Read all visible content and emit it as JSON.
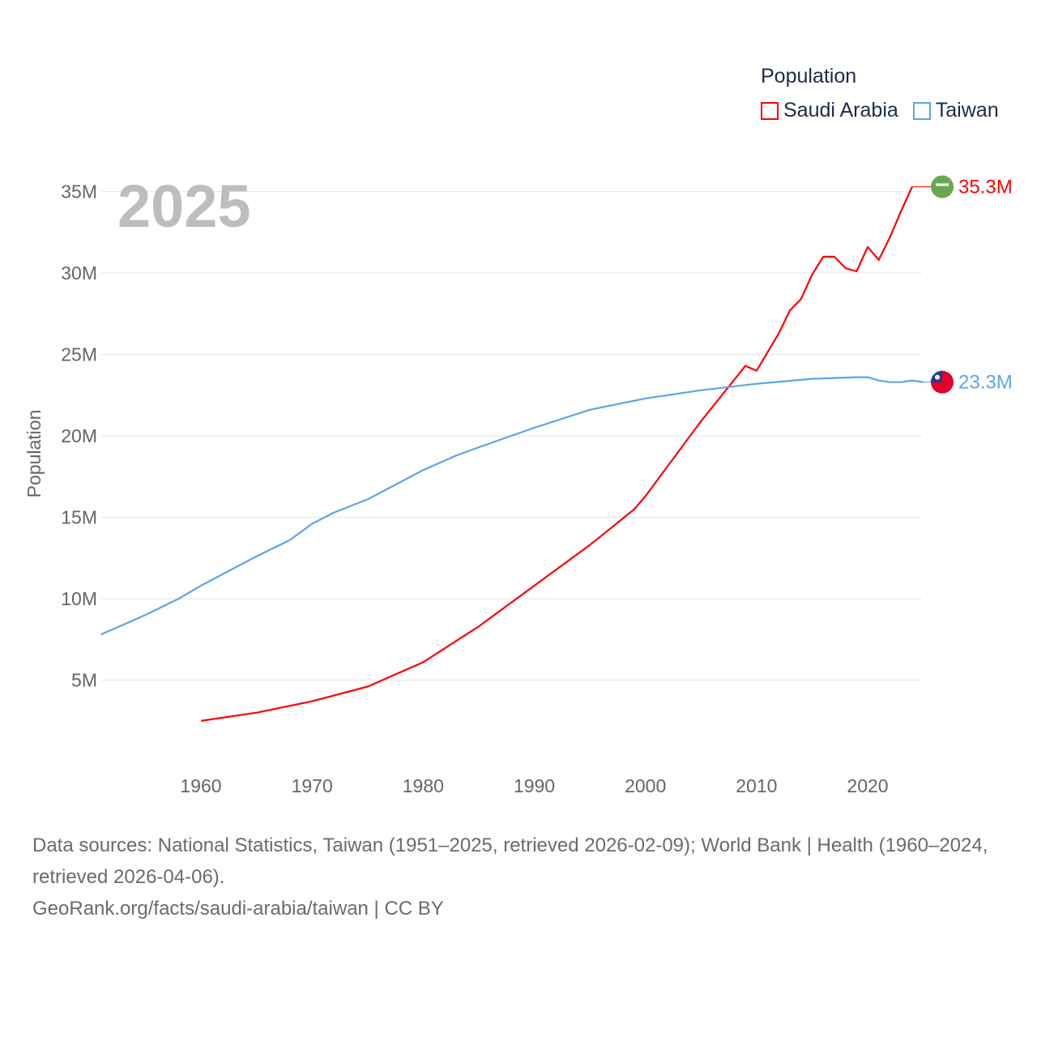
{
  "chart_data": {
    "type": "line",
    "title": "Population",
    "year_label": "2025",
    "ylabel": "Population",
    "xlabel": "",
    "xlim": [
      1951,
      2025
    ],
    "ylim": [
      0,
      37000000
    ],
    "xticks": [
      1960,
      1970,
      1980,
      1990,
      2000,
      2010,
      2020
    ],
    "yticks": [
      {
        "v": 5000000,
        "l": "5M"
      },
      {
        "v": 10000000,
        "l": "10M"
      },
      {
        "v": 15000000,
        "l": "15M"
      },
      {
        "v": 20000000,
        "l": "20M"
      },
      {
        "v": 25000000,
        "l": "25M"
      },
      {
        "v": 30000000,
        "l": "30M"
      },
      {
        "v": 35000000,
        "l": "35M"
      }
    ],
    "grid": true,
    "legend_placement": "top-right",
    "series": [
      {
        "name": "Saudi Arabia",
        "color": "#ff0000",
        "end_label": "35.3M",
        "x": [
          1960,
          1965,
          1970,
          1975,
          1980,
          1985,
          1990,
          1995,
          1999,
          2000,
          2005,
          2009,
          2010,
          2012,
          2013,
          2014,
          2015,
          2016,
          2017,
          2018,
          2019,
          2020,
          2021,
          2022,
          2023,
          2024
        ],
        "y": [
          2.5,
          3.0,
          3.7,
          4.6,
          6.1,
          8.3,
          10.8,
          13.3,
          15.5,
          16.3,
          20.9,
          24.3,
          24.0,
          26.3,
          27.7,
          28.4,
          29.9,
          31.0,
          31.0,
          30.3,
          30.1,
          31.6,
          30.8,
          32.2,
          33.8,
          35.3
        ]
      },
      {
        "name": "Taiwan",
        "color": "#5aa5ec",
        "end_label": "23.3M",
        "x": [
          1951,
          1953,
          1955,
          1958,
          1960,
          1965,
          1968,
          1970,
          1972,
          1975,
          1980,
          1983,
          1985,
          1990,
          1995,
          2000,
          2005,
          2010,
          2015,
          2019,
          2020,
          2021,
          2022,
          2023,
          2024,
          2025
        ],
        "y": [
          7.8,
          8.4,
          9.0,
          10.0,
          10.8,
          12.6,
          13.6,
          14.6,
          15.3,
          16.1,
          17.9,
          18.8,
          19.3,
          20.5,
          21.6,
          22.3,
          22.8,
          23.2,
          23.5,
          23.6,
          23.6,
          23.4,
          23.3,
          23.3,
          23.4,
          23.3
        ]
      }
    ]
  },
  "legend": {
    "title": "Population",
    "items": [
      "Saudi Arabia",
      "Taiwan"
    ]
  },
  "footer": {
    "sources": "Data sources: National Statistics, Taiwan (1951–2025, retrieved 2026-02-09); World Bank | Health (1960–2024, retrieved 2026-04-06).",
    "credit": "GeoRank.org/facts/saudi-arabia/taiwan | CC BY"
  }
}
